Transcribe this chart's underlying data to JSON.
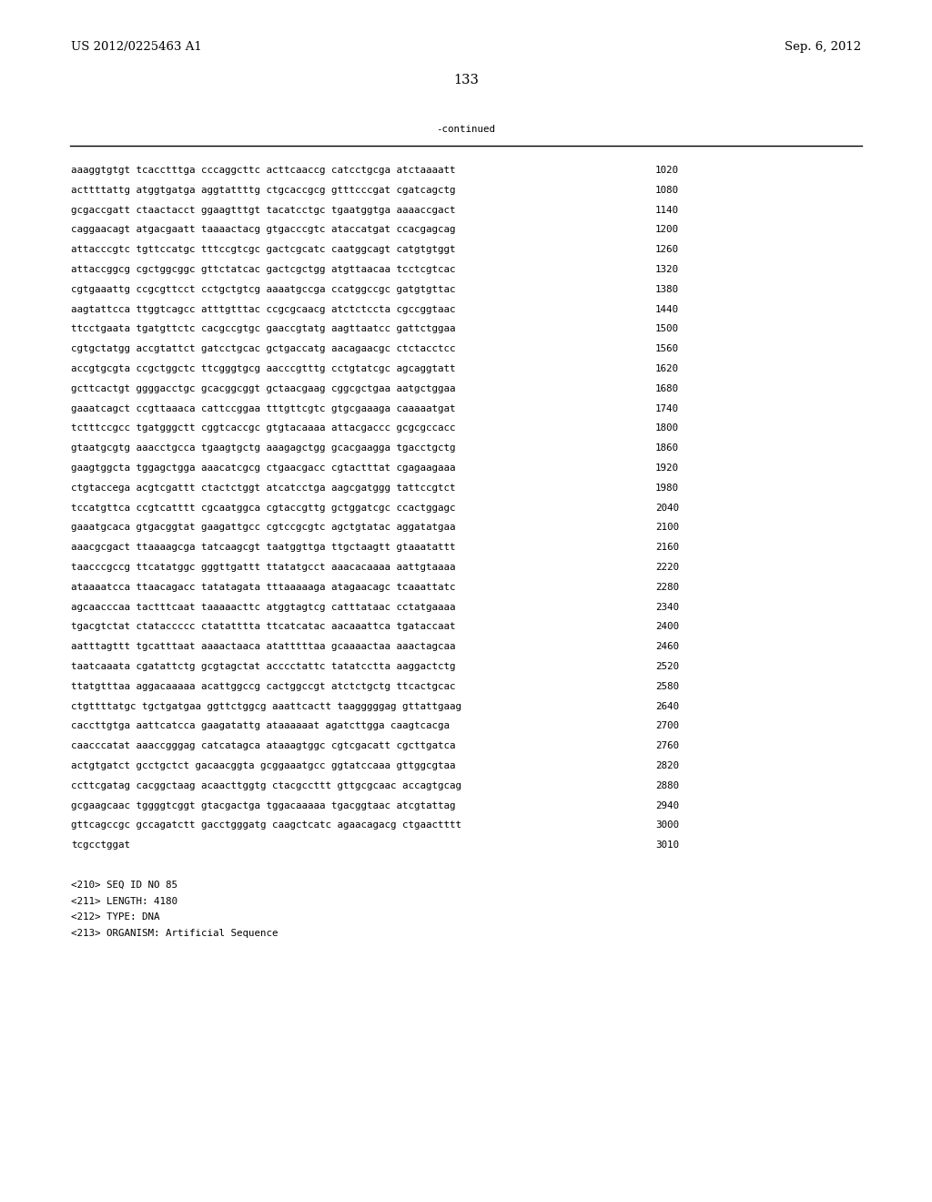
{
  "header_left": "US 2012/0225463 A1",
  "header_right": "Sep. 6, 2012",
  "page_number": "133",
  "continued_label": "-continued",
  "background_color": "#ffffff",
  "text_color": "#000000",
  "font_size_header": 9.5,
  "font_size_body": 7.8,
  "font_size_page": 10.5,
  "sequence_lines": [
    [
      "aaaggtgtgt tcacctttga cccaggcttc acttcaaccg catcctgcga atctaaaatt",
      "1020"
    ],
    [
      "acttttattg atggtgatga aggtattttg ctgcaccgcg gtttcccgat cgatcagctg",
      "1080"
    ],
    [
      "gcgaccgatt ctaactacct ggaagtttgt tacatcctgc tgaatggtga aaaaccgact",
      "1140"
    ],
    [
      "caggaacagt atgacgaatt taaaactacg gtgacccgtc ataccatgat ccacgagcag",
      "1200"
    ],
    [
      "attacccgtc tgttccatgc tttccgtcgc gactcgcatc caatggcagt catgtgtggt",
      "1260"
    ],
    [
      "attaccggcg cgctggcggc gttctatcac gactcgctgg atgttaacaa tcctcgtcac",
      "1320"
    ],
    [
      "cgtgaaattg ccgcgttcct cctgctgtcg aaaatgccga ccatggccgc gatgtgttac",
      "1380"
    ],
    [
      "aagtattcca ttggtcagcc atttgtttac ccgcgcaacg atctctccta cgccggtaac",
      "1440"
    ],
    [
      "ttcctgaata tgatgttctc cacgccgtgc gaaccgtatg aagttaatcc gattctggaa",
      "1500"
    ],
    [
      "cgtgctatgg accgtattct gatcctgcac gctgaccatg aacagaacgc ctctacctcc",
      "1560"
    ],
    [
      "accgtgcgta ccgctggctc ttcgggtgcg aacccgtttg cctgtatcgc agcaggtatt",
      "1620"
    ],
    [
      "gcttcactgt ggggacctgc gcacggcggt gctaacgaag cggcgctgaa aatgctggaa",
      "1680"
    ],
    [
      "gaaatcagct ccgttaaaca cattccggaa tttgttcgtc gtgcgaaaga caaaaatgat",
      "1740"
    ],
    [
      "tctttccgcc tgatgggctt cggtcaccgc gtgtacaaaa attacgaccc gcgcgccacc",
      "1800"
    ],
    [
      "gtaatgcgtg aaacctgcca tgaagtgctg aaagagctgg gcacgaagga tgacctgctg",
      "1860"
    ],
    [
      "gaagtggcta tggagctgga aaacatcgcg ctgaacgacc cgtactttat cgagaagaaa",
      "1920"
    ],
    [
      "ctgtaccega acgtcgattt ctactctggt atcatcctga aagcgatggg tattccgtct",
      "1980"
    ],
    [
      "tccatgttca ccgtcatttt cgcaatggca cgtaccgttg gctggatcgc ccactggagc",
      "2040"
    ],
    [
      "gaaatgcaca gtgacggtat gaagattgcc cgtccgcgtc agctgtatac aggatatgaa",
      "2100"
    ],
    [
      "aaacgcgact ttaaaagcga tatcaagcgt taatggttga ttgctaagtt gtaaatattt",
      "2160"
    ],
    [
      "taacccgccg ttcatatggc gggttgattt ttatatgcct aaacacaaaa aattgtaaaa",
      "2220"
    ],
    [
      "ataaaatcca ttaacagacc tatatagata tttaaaaaga atagaacagc tcaaattatc",
      "2280"
    ],
    [
      "agcaacccaa tactttcaat taaaaacttc atggtagtcg catttataac cctatgaaaa",
      "2340"
    ],
    [
      "tgacgtctat ctataccccc ctatatttta ttcatcatac aacaaattca tgataccaat",
      "2400"
    ],
    [
      "aatttagttt tgcatttaat aaaactaaca atatttttaa gcaaaactaa aaactagcaa",
      "2460"
    ],
    [
      "taatcaaata cgatattctg gcgtagctat acccctattc tatatcctta aaggactctg",
      "2520"
    ],
    [
      "ttatgtttaa aggacaaaaa acattggccg cactggccgt atctctgctg ttcactgcac",
      "2580"
    ],
    [
      "ctgttttatgc tgctgatgaa ggttctggcg aaattcactt taagggggag gttattgaag",
      "2640"
    ],
    [
      "caccttgtga aattcatcca gaagatattg ataaaaaat agatcttgga caagtcacga",
      "2700"
    ],
    [
      "caacccatat aaaccgggag catcatagca ataaagtggc cgtcgacatt cgcttgatca",
      "2760"
    ],
    [
      "actgtgatct gcctgctct gacaacggta gcggaaatgcc ggtatccaaa gttggcgtaa",
      "2820"
    ],
    [
      "ccttcgatag cacggctaag acaacttggtg ctacgccttt gttgcgcaac accagtgcag",
      "2880"
    ],
    [
      "gcgaagcaac tggggtcggt gtacgactga tggacaaaaa tgacggtaac atcgtattag",
      "2940"
    ],
    [
      "gttcagccgc gccagatctt gacctgggatg caagctcatc agaacagacg ctgaactttt",
      "3000"
    ],
    [
      "tcgcctggat",
      "3010"
    ]
  ],
  "footer_lines": [
    "<210> SEQ ID NO 85",
    "<211> LENGTH: 4180",
    "<212> TYPE: DNA",
    "<213> ORGANISM: Artificial Sequence"
  ]
}
